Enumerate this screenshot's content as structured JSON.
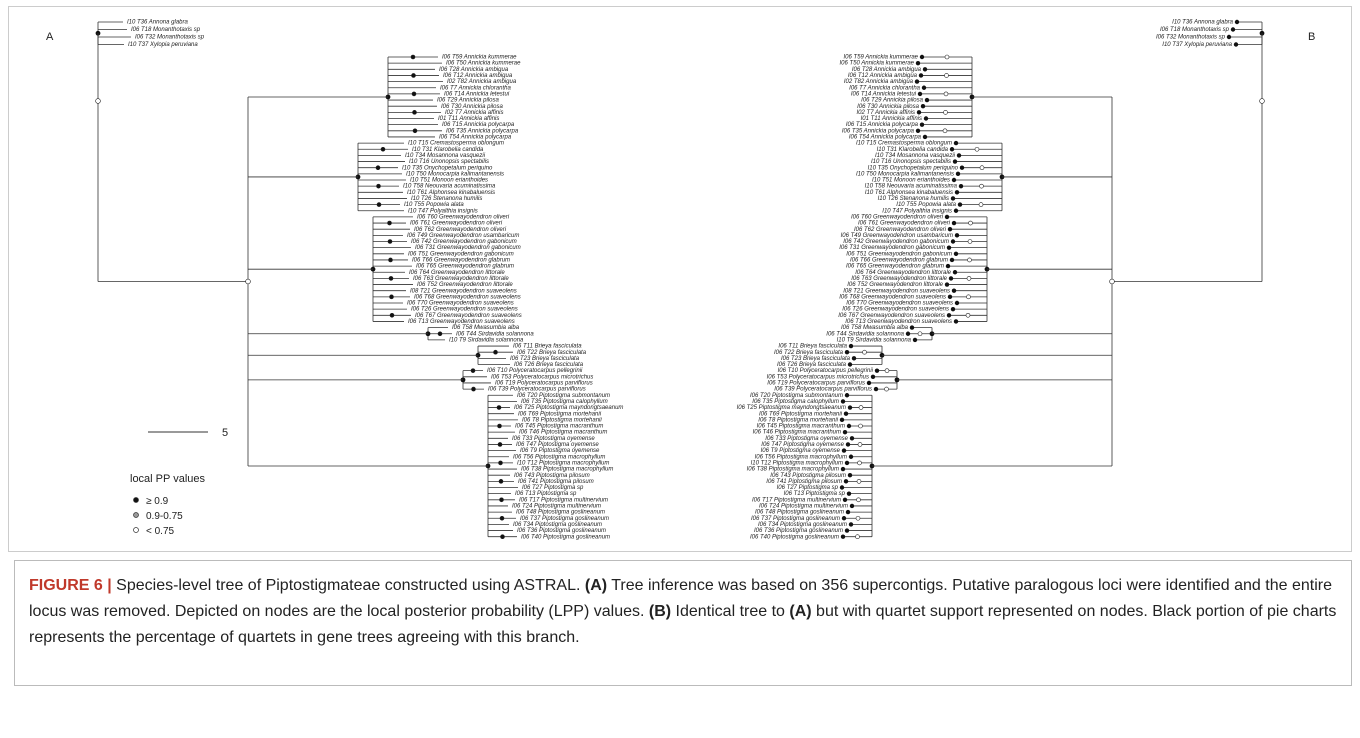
{
  "panels": [
    {
      "label": "A"
    },
    {
      "label": "B"
    }
  ],
  "taxa": [
    "I10 T36 Annona glabra",
    "I06 T18 Monanthotaxis sp",
    "I06 T32 Monanthotaxis sp",
    "I10 T37 Xylopia peruviana",
    "I06 T59 Annickia kummerae",
    "I06 T50 Annickia kummerae",
    "I06 T28 Annickia ambigua",
    "I06 T12 Annickia ambigua",
    "I02 T82 Annickia ambigua",
    "I06 T7 Annickia chlorantha",
    "I06 T14 Annickia letestui",
    "I06 T29 Annickia pilosa",
    "I06 T30 Annickia pilosa",
    "I02 T7 Annickia affinis",
    "I01 T11 Annickia affinis",
    "I06 T15 Annickia polycarpa",
    "I06 T35 Annickia polycarpa",
    "I06 T54 Annickia polycarpa",
    "I10 T15 Cremastosperma oblongum",
    "I10 T31 Klarobelia candida",
    "I10 T34 Mosannona vasquezii",
    "I10 T16 Unonopsis spectabilis",
    "I10 T35 Onychopetalum periquino",
    "I10 T50 Monocarpia kalimantanensis",
    "I10 T51 Monoon erianthoides",
    "I10 T58 Neouvaria acuminatissima",
    "I10 T61 Alphonsea kinabaluensis",
    "I10 T26 Stenanona humilis",
    "I10 T55 Popowia alata",
    "I10 T47 Polyalthia insignis",
    "I06 T60 Greenwayodendron oliveri",
    "I06 T61 Greenwayodendron oliveri",
    "I06 T62 Greenwayodendron oliveri",
    "I06 T49 Greenwayodendron usambaricum",
    "I06 T42 Greenwayodendron gabonicum",
    "I06 T31 Greenwayodendron gabonicum",
    "I06 T51 Greenwayodendron gabonicum",
    "I06 T66 Greenwayodendron glabrum",
    "I06 T65 Greenwayodendron glabrum",
    "I06 T64 Greenwayodendron littorale",
    "I06 T63 Greenwayodendron littorale",
    "I06 T52 Greenwayodendron littorale",
    "I08 T21 Greenwayodendron suaveolens",
    "I06 T68 Greenwayodendron suaveolens",
    "I06 T70 Greenwayodendron suaveolens",
    "I06 T26 Greenwayodendron suaveolens",
    "I06 T67 Greenwayodendron suaveolens",
    "I06 T13 Greenwayodendron suaveolens",
    "I06 T58 Mwasumbia alba",
    "I06 T44 Sirdavidia solannona",
    "I10 T9 Sirdavidia solannona",
    "I06 T11 Brieya fasciculata",
    "I06 T22 Brieya fasciculata",
    "I06 T23 Brieya fasciculata",
    "I06 T26 Brieya fasciculata",
    "I06 T10 Polyceratocarpus pellegrinii",
    "I06 T53 Polyceratocarpus microtrichus",
    "I06 T19 Polyceratocarpus parviflorus",
    "I06 T39 Polyceratocarpus parviflorus",
    "I06 T20 Piptostigma submontanum",
    "I06 T35 Piptostigma calophyllum",
    "I06 T25 Piptostigma mayndongtsaeanum",
    "I06 T69 Piptostigma mortehanii",
    "I06 T8 Piptostigma mortehanii",
    "I06 T45 Piptostigma macranthum",
    "I06 T46 Piptostigma macranthum",
    "I06 T33 Piptostigma oyemense",
    "I06 T47 Piptostigma oyemense",
    "I06 T9 Piptostigma oyemense",
    "I06 T56 Piptostigma macrophyllum",
    "I10 T12 Piptostigma macrophyllum",
    "I06 T38 Piptostigma macrophyllum",
    "I06 T43 Piptostigma pilosum",
    "I06 T41 Piptostigma pilosum",
    "I06 T27 Piptostigma sp",
    "I06 T13 Piptostigma sp",
    "I06 T17 Piptostigma multinervium",
    "I06 T24 Piptostigma multinervium",
    "I06 T48 Piptostigma goslineanum",
    "I06 T37 Piptostigma goslineanum",
    "I06 T34 Piptostigma goslineanum",
    "I06 T36 Piptostigma goslineanum",
    "I06 T40 Piptostigma goslineanum"
  ],
  "scale_bar": "5",
  "legend": {
    "title": "local PP values",
    "items": [
      "≥ 0.9",
      "0.9-0.75",
      "< 0.75"
    ]
  },
  "caption": {
    "label": "FIGURE 6 |",
    "parts": [
      "Species-level tree of Piptostigmateae constructed using ASTRAL. ",
      "(A)",
      " Tree inference was based on 356 supercontigs. Putative paralogous loci were identified and the entire locus was removed. Depicted on nodes are the local posterior probability (LPP) values. ",
      "(B)",
      " Identical tree to ",
      "(A)",
      " but with quartet support represented on nodes. Black portion of pie charts represents the percentage of quartets in gene trees agreeing with this branch."
    ]
  }
}
